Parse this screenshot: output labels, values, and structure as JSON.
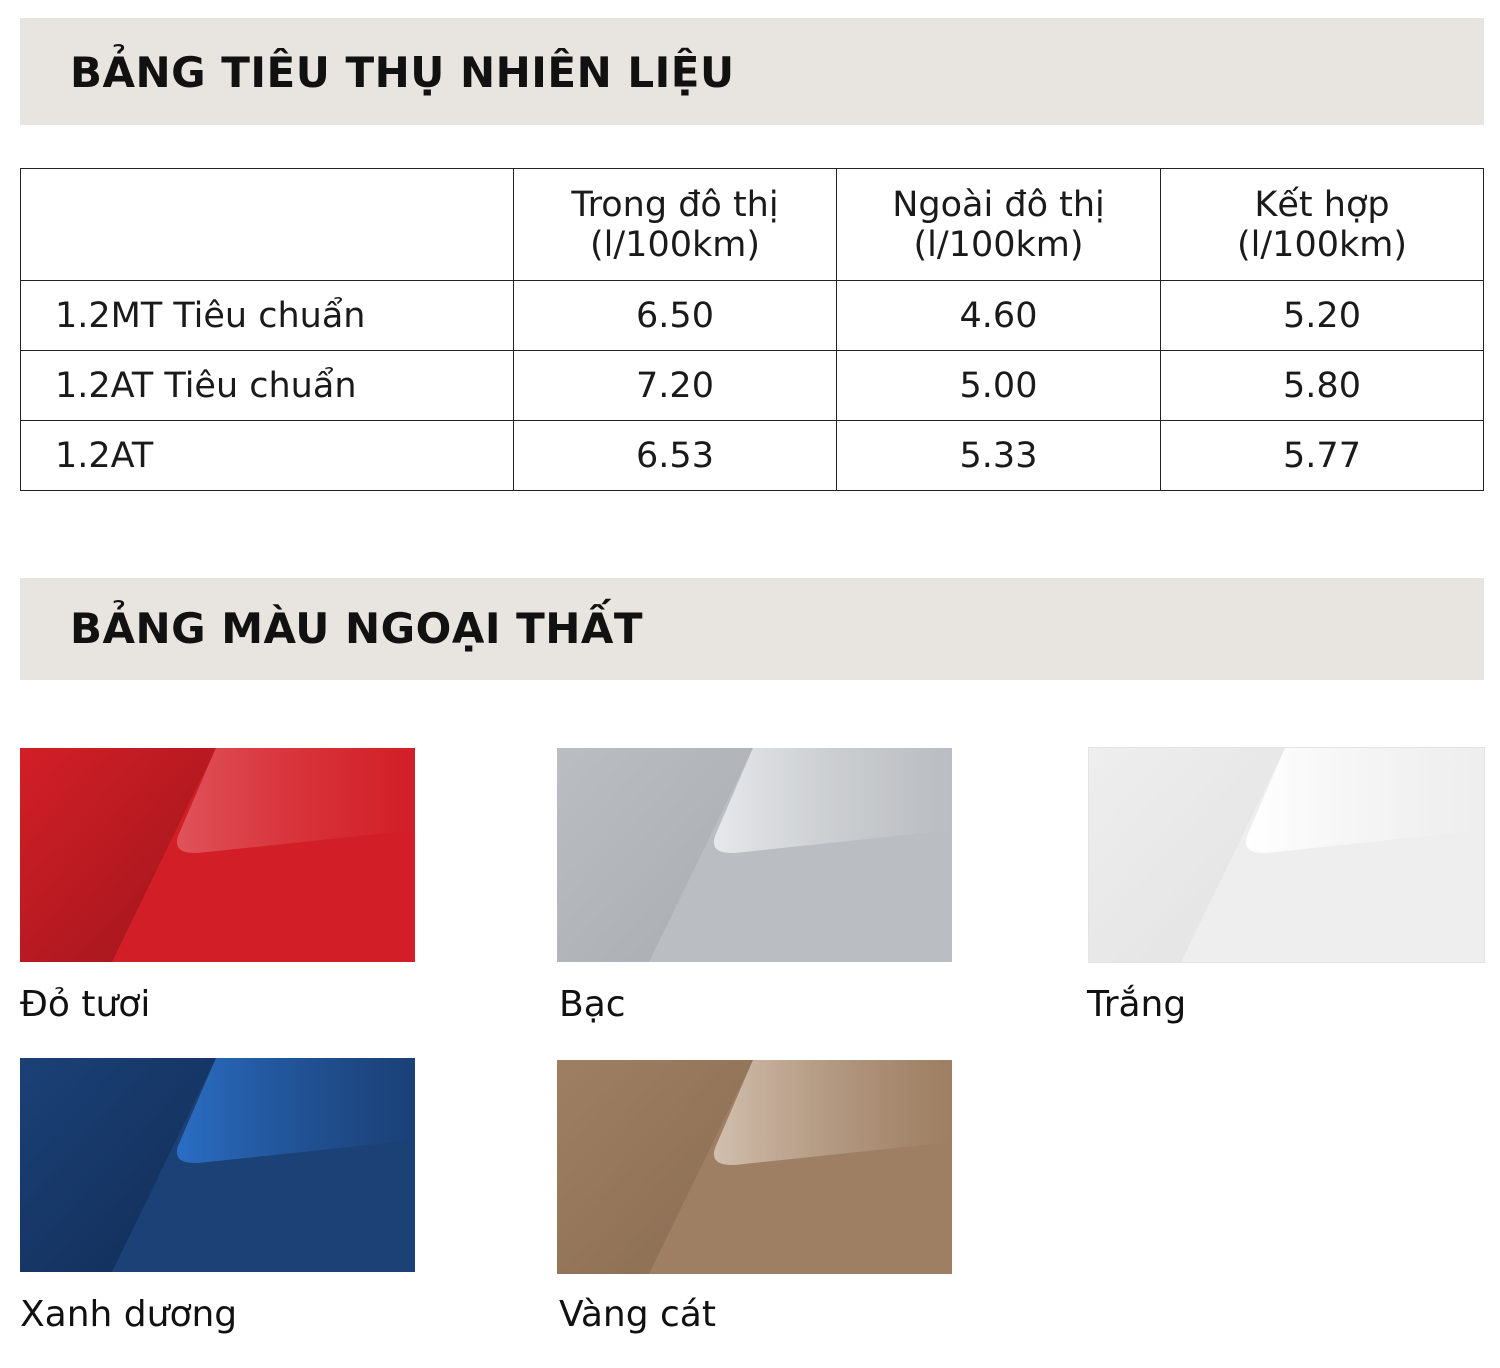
{
  "fuel": {
    "title": "BẢNG TIÊU THỤ NHIÊN LIỆU",
    "headers": [
      "",
      "Trong đô thị\n(l/100km)",
      "Ngoài đô thị\n(l/100km)",
      "Kết hợp\n(l/100km)"
    ],
    "rows": [
      [
        "1.2MT Tiêu chuẩn",
        "6.50",
        "4.60",
        "5.20"
      ],
      [
        "1.2AT Tiêu chuẩn",
        "7.20",
        "5.00",
        "5.80"
      ],
      [
        "1.2AT",
        "6.53",
        "5.33",
        "5.77"
      ]
    ]
  },
  "colors": {
    "title": "BẢNG MÀU NGOẠI THẤT",
    "items": [
      {
        "label": "Đỏ tươi",
        "base": "#d21f27",
        "dark": "#9e151c",
        "light": "#e0535a"
      },
      {
        "label": "Bạc",
        "base": "#babdc1",
        "dark": "#a9acb0",
        "light": "#e6e9eb"
      },
      {
        "label": "Trắng",
        "base": "#eeeeee",
        "dark": "#e2e2e2",
        "light": "#ffffff"
      },
      {
        "label": "Xanh dương",
        "base": "#1b4177",
        "dark": "#112c55",
        "light": "#2b6ec4"
      },
      {
        "label": "Vàng cát",
        "base": "#9e7f63",
        "dark": "#8a6c52",
        "light": "#d2bfae"
      }
    ]
  }
}
